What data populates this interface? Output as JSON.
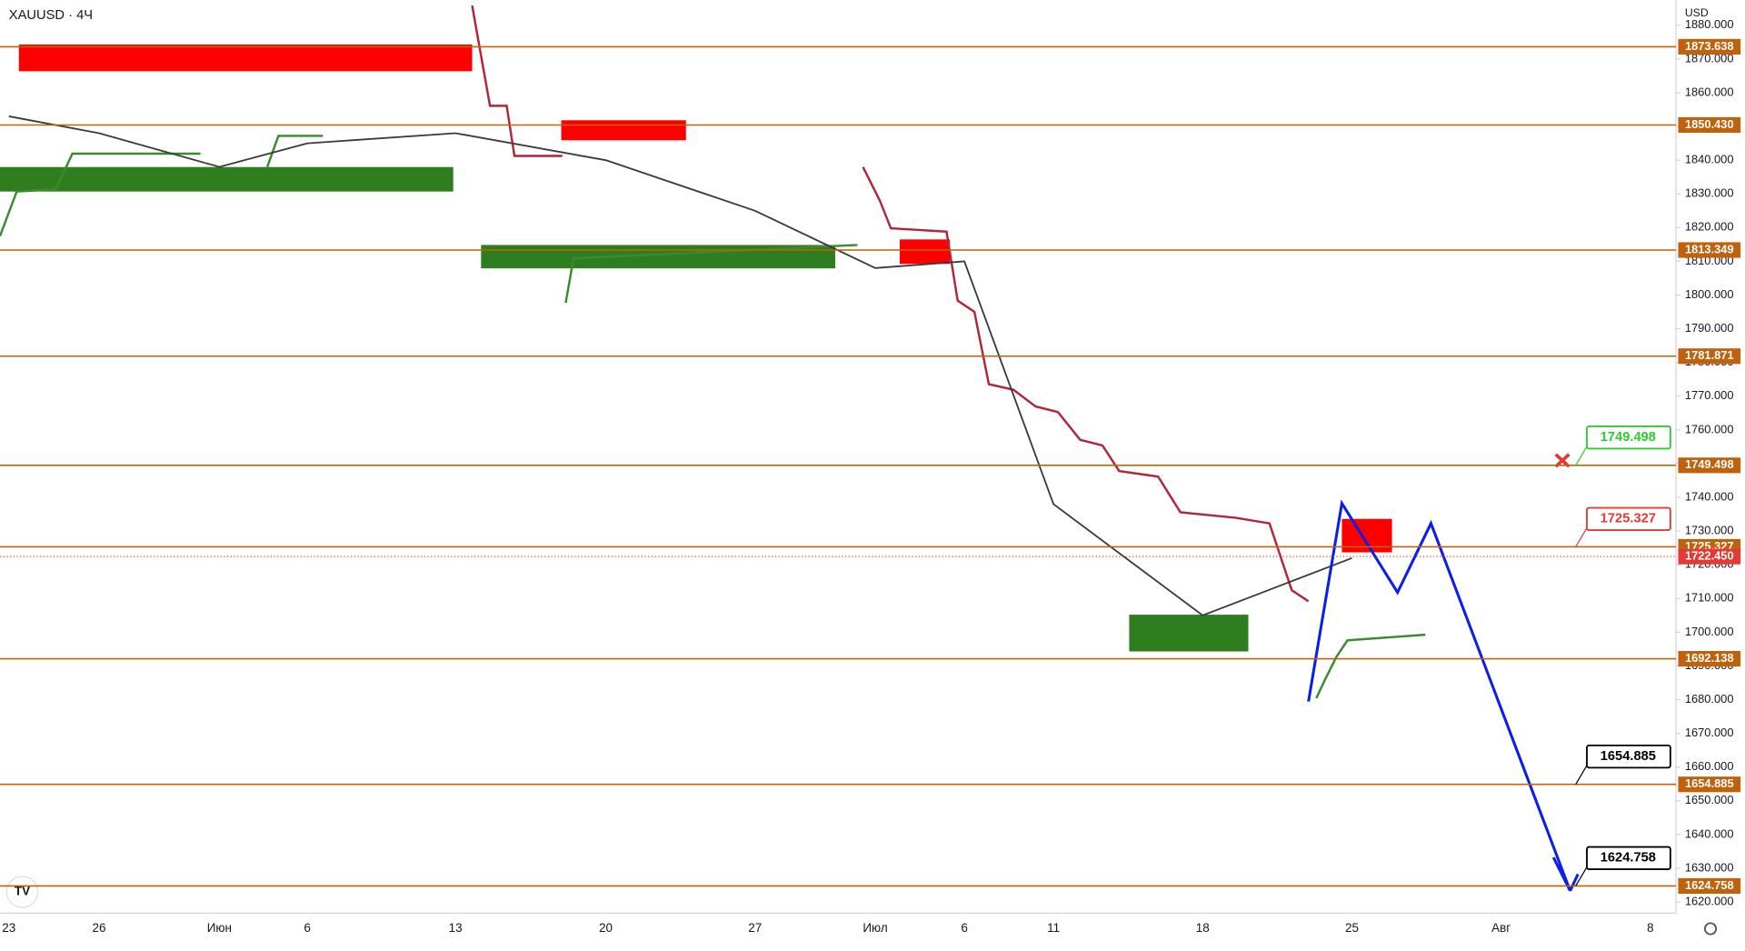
{
  "chart_data": {
    "type": "line",
    "title": "XAUUSD · 4Ч",
    "currency": "USD",
    "categories": [
      "23",
      "26",
      "Июн",
      "6",
      "13",
      "20",
      "27",
      "Июл",
      "6",
      "11",
      "18",
      "25",
      "Авг",
      "8"
    ],
    "series": [
      {
        "name": "XAUUSD",
        "color": "#3a3a3a",
        "values": [
          1853,
          1848,
          1838,
          1845,
          1848,
          1840,
          1825,
          1808,
          1810,
          1738,
          1705,
          1722,
          null,
          null
        ]
      }
    ],
    "ylim": [
      1616.7,
      1887.5
    ],
    "yticks": [
      {
        "value": 1620,
        "label": "1620.000"
      },
      {
        "value": 1630,
        "label": "1630.000"
      },
      {
        "value": 1640,
        "label": "1640.000"
      },
      {
        "value": 1650,
        "label": "1650.000"
      },
      {
        "value": 1660,
        "label": "1660.000"
      },
      {
        "value": 1670,
        "label": "1670.000"
      },
      {
        "value": 1680,
        "label": "1680.000"
      },
      {
        "value": 1690,
        "label": "1690.000"
      },
      {
        "value": 1700,
        "label": "1700.000"
      },
      {
        "value": 1710,
        "label": "1710.000"
      },
      {
        "value": 1720,
        "label": "1720.000"
      },
      {
        "value": 1730,
        "label": "1730.000"
      },
      {
        "value": 1740,
        "label": "1740.000"
      },
      {
        "value": 1750,
        "label": "1750.000"
      },
      {
        "value": 1760,
        "label": "1760.000"
      },
      {
        "value": 1770,
        "label": "1770.000"
      },
      {
        "value": 1780,
        "label": "1780.000"
      },
      {
        "value": 1790,
        "label": "1790.000"
      },
      {
        "value": 1800,
        "label": "1800.000"
      },
      {
        "value": 1810,
        "label": "1810.000"
      },
      {
        "value": 1820,
        "label": "1820.000"
      },
      {
        "value": 1830,
        "label": "1830.000"
      },
      {
        "value": 1840,
        "label": "1840.000"
      },
      {
        "value": 1850,
        "label": "1850.000"
      },
      {
        "value": 1860,
        "label": "1860.000"
      },
      {
        "value": 1870,
        "label": "1870.000"
      },
      {
        "value": 1880,
        "label": "1880.000"
      }
    ],
    "levels": [
      {
        "value": 1873.638,
        "label": "1873.638"
      },
      {
        "value": 1850.43,
        "label": "1850.430"
      },
      {
        "value": 1813.349,
        "label": "1813.349"
      },
      {
        "value": 1781.871,
        "label": "1781.871"
      },
      {
        "value": 1749.498,
        "label": "1749.498"
      },
      {
        "value": 1725.327,
        "label": "1725.327"
      },
      {
        "value": 1692.138,
        "label": "1692.138"
      },
      {
        "value": 1654.885,
        "label": "1654.885"
      },
      {
        "value": 1624.758,
        "label": "1624.758"
      }
    ],
    "level_color": "#c0610c",
    "current_price": {
      "value": 1722.45,
      "label": "1722.450",
      "color": "#e53935"
    },
    "callouts": [
      {
        "level": 4,
        "color": "#2ecc2e"
      },
      {
        "level": 5,
        "color": "#e53935"
      },
      {
        "level": 7,
        "color": "#000000"
      },
      {
        "level": 8,
        "color": "#000000"
      }
    ]
  }
}
